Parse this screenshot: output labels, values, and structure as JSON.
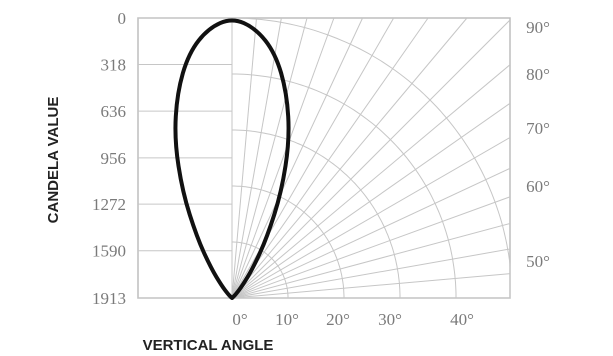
{
  "chart_data": {
    "type": "polar-luminous-intensity",
    "xlabel": "VERTICAL ANGLE",
    "ylabel": "CANDELA VALUE",
    "y_ticks": [
      "0",
      "318",
      "636",
      "956",
      "1272",
      "1590",
      "1913"
    ],
    "y_tick_values": [
      0,
      318,
      636,
      956,
      1272,
      1590,
      1913
    ],
    "bottom_angle_labels": [
      "0°",
      "10°",
      "20°",
      "30°",
      "40°"
    ],
    "bottom_angle_values": [
      0,
      10,
      20,
      30,
      40
    ],
    "right_angle_labels": [
      "90°",
      "80°",
      "70°",
      "60°",
      "50°"
    ],
    "right_angle_values": [
      90,
      80,
      70,
      60,
      50
    ],
    "ylim": [
      0,
      1913
    ],
    "grid": true,
    "series": [
      {
        "curve": [
          {
            "angle": 0,
            "candela": 1913
          },
          {
            "angle": 5,
            "candela": 1850
          },
          {
            "angle": 10,
            "candela": 1700
          },
          {
            "angle": 15,
            "candela": 1450
          },
          {
            "angle": 20,
            "candela": 1150
          },
          {
            "angle": 25,
            "candela": 800
          },
          {
            "angle": 30,
            "candela": 480
          },
          {
            "angle": 35,
            "candela": 250
          },
          {
            "angle": 40,
            "candela": 110
          },
          {
            "angle": 45,
            "candela": 40
          },
          {
            "angle": 50,
            "candela": 10
          },
          {
            "angle": 60,
            "candela": 0
          },
          {
            "angle": 90,
            "candela": 0
          }
        ]
      }
    ]
  }
}
